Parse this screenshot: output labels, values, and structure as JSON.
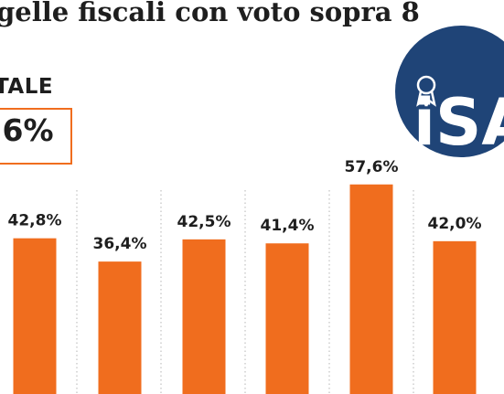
{
  "header": {
    "title": "gelle fiscali con voto sopra 8",
    "total_label": "TALE",
    "total_value": ",6%"
  },
  "logo": {
    "text": "iSA",
    "icon": "award-ribbon-icon",
    "color": "#1f4477"
  },
  "colors": {
    "bar": "#f06d1e",
    "text": "#1e1e1e",
    "gridline": "#b5b5b5"
  },
  "chart_data": {
    "type": "bar",
    "title": "",
    "xlabel": "",
    "ylabel": "",
    "categories": [],
    "values": [
      42.8,
      36.4,
      42.5,
      41.4,
      57.6,
      42.0
    ],
    "labels": [
      "42,8%",
      "36,4%",
      "42,5%",
      "41,4%",
      "57,6%",
      "42,0%"
    ],
    "ylim": [
      0,
      62
    ],
    "grid": "vertical dotted separators",
    "legend": "none"
  }
}
